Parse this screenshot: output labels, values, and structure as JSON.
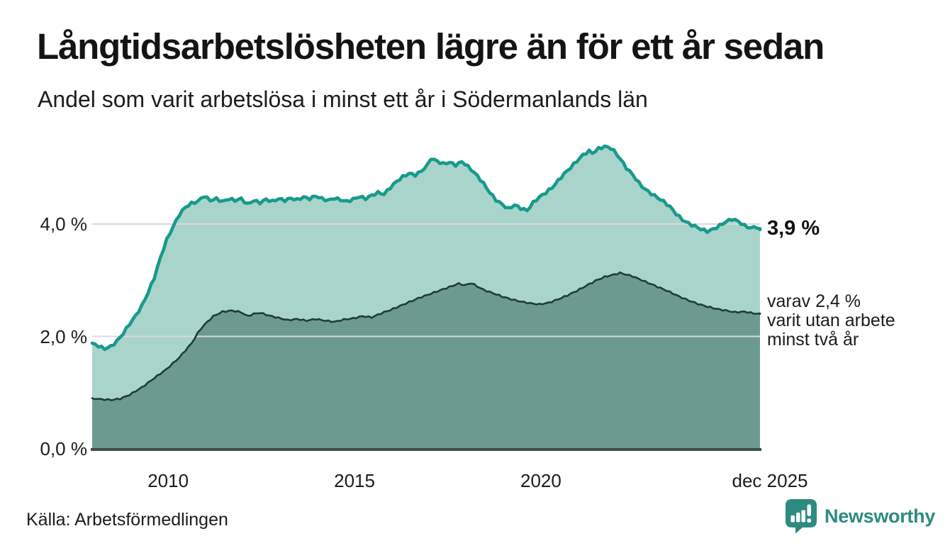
{
  "header": {
    "title": "Långtidsarbetslösheten lägre än för ett år sedan",
    "subtitle": "Andel som varit arbetslösa i minst ett år i Södermanlands län"
  },
  "annotations": {
    "end_total": "3,9 %",
    "end_two_years": "varav 2,4 %\nvarit utan arbete\nminst två år"
  },
  "source": {
    "label": "Källa: Arbetsförmedlingen"
  },
  "branding": {
    "name": "Newsworthy",
    "logo_icon": "bar-chart-speech-bubble-icon",
    "color": "#2e8b80"
  },
  "colors": {
    "total_line": "#189a8b",
    "total_fill": "#a9d4cc",
    "two_years_line": "#1f3c37",
    "two_years_fill": "#6d9a90",
    "baseline": "#3c4e4a",
    "gridline": "#d9d9d9",
    "text": "#1c1c1c"
  },
  "chart_data": {
    "type": "area",
    "title": "Långtidsarbetslösheten lägre än för ett år sedan",
    "subtitle": "Andel som varit arbetslösa i minst ett år i Södermanlands län",
    "unit": "%",
    "x_range": [
      2008.0,
      2025.9167
    ],
    "ylim": [
      0,
      5.5
    ],
    "grid": "horizontal",
    "legend_position": "right-edge-labels",
    "y_axis": {
      "ticks": [
        {
          "label": "4,0 %",
          "value": 4.0
        },
        {
          "label": "2,0 %",
          "value": 2.0
        },
        {
          "label": "0,0 %",
          "value": 0.0
        }
      ]
    },
    "x_axis": {
      "ticks": [
        {
          "label": "2010",
          "year": 2010
        },
        {
          "label": "2015",
          "year": 2015
        },
        {
          "label": "2020",
          "year": 2020
        },
        {
          "label": "dec 2025",
          "year": 2025.9167
        }
      ]
    },
    "series": [
      {
        "name": "Andel arbetslösa minst ett år",
        "end_value": 3.9,
        "end_label": "3,9 %",
        "line_color": "#189a8b",
        "fill_color": "#a9d4cc",
        "points": [
          [
            2008.0,
            1.88
          ],
          [
            2008.17,
            1.83
          ],
          [
            2008.33,
            1.78
          ],
          [
            2008.5,
            1.82
          ],
          [
            2008.67,
            1.92
          ],
          [
            2008.83,
            2.05
          ],
          [
            2009.0,
            2.22
          ],
          [
            2009.17,
            2.37
          ],
          [
            2009.33,
            2.54
          ],
          [
            2009.5,
            2.78
          ],
          [
            2009.67,
            3.05
          ],
          [
            2009.83,
            3.4
          ],
          [
            2010.0,
            3.72
          ],
          [
            2010.17,
            3.95
          ],
          [
            2010.33,
            4.16
          ],
          [
            2010.5,
            4.3
          ],
          [
            2010.67,
            4.37
          ],
          [
            2010.83,
            4.4
          ],
          [
            2011.0,
            4.5
          ],
          [
            2011.17,
            4.42
          ],
          [
            2011.33,
            4.45
          ],
          [
            2011.5,
            4.4
          ],
          [
            2011.67,
            4.45
          ],
          [
            2011.83,
            4.42
          ],
          [
            2012.0,
            4.45
          ],
          [
            2012.17,
            4.35
          ],
          [
            2012.33,
            4.42
          ],
          [
            2012.5,
            4.38
          ],
          [
            2012.67,
            4.44
          ],
          [
            2012.83,
            4.4
          ],
          [
            2013.0,
            4.45
          ],
          [
            2013.17,
            4.42
          ],
          [
            2013.33,
            4.46
          ],
          [
            2013.5,
            4.43
          ],
          [
            2013.67,
            4.48
          ],
          [
            2013.83,
            4.45
          ],
          [
            2014.0,
            4.5
          ],
          [
            2014.17,
            4.45
          ],
          [
            2014.33,
            4.42
          ],
          [
            2014.5,
            4.46
          ],
          [
            2014.67,
            4.43
          ],
          [
            2014.83,
            4.4
          ],
          [
            2015.0,
            4.44
          ],
          [
            2015.17,
            4.49
          ],
          [
            2015.33,
            4.45
          ],
          [
            2015.5,
            4.51
          ],
          [
            2015.67,
            4.56
          ],
          [
            2015.83,
            4.53
          ],
          [
            2016.0,
            4.65
          ],
          [
            2016.17,
            4.76
          ],
          [
            2016.33,
            4.84
          ],
          [
            2016.5,
            4.9
          ],
          [
            2016.67,
            4.87
          ],
          [
            2016.83,
            4.94
          ],
          [
            2017.0,
            5.05
          ],
          [
            2017.08,
            5.17
          ],
          [
            2017.25,
            5.12
          ],
          [
            2017.42,
            5.07
          ],
          [
            2017.58,
            5.1
          ],
          [
            2017.75,
            5.05
          ],
          [
            2017.92,
            5.11
          ],
          [
            2018.0,
            5.07
          ],
          [
            2018.17,
            4.97
          ],
          [
            2018.33,
            4.86
          ],
          [
            2018.5,
            4.72
          ],
          [
            2018.67,
            4.56
          ],
          [
            2018.83,
            4.43
          ],
          [
            2019.0,
            4.35
          ],
          [
            2019.17,
            4.27
          ],
          [
            2019.33,
            4.34
          ],
          [
            2019.5,
            4.28
          ],
          [
            2019.67,
            4.24
          ],
          [
            2019.83,
            4.38
          ],
          [
            2020.0,
            4.48
          ],
          [
            2020.17,
            4.56
          ],
          [
            2020.33,
            4.64
          ],
          [
            2020.5,
            4.77
          ],
          [
            2020.67,
            4.9
          ],
          [
            2020.83,
            5.0
          ],
          [
            2021.0,
            5.12
          ],
          [
            2021.17,
            5.23
          ],
          [
            2021.33,
            5.3
          ],
          [
            2021.42,
            5.26
          ],
          [
            2021.58,
            5.34
          ],
          [
            2021.75,
            5.38
          ],
          [
            2021.92,
            5.35
          ],
          [
            2022.0,
            5.3
          ],
          [
            2022.17,
            5.16
          ],
          [
            2022.33,
            5.0
          ],
          [
            2022.5,
            4.88
          ],
          [
            2022.67,
            4.73
          ],
          [
            2022.83,
            4.62
          ],
          [
            2023.0,
            4.54
          ],
          [
            2023.17,
            4.47
          ],
          [
            2023.33,
            4.4
          ],
          [
            2023.5,
            4.31
          ],
          [
            2023.67,
            4.18
          ],
          [
            2023.83,
            4.08
          ],
          [
            2024.0,
            4.01
          ],
          [
            2024.17,
            3.96
          ],
          [
            2024.33,
            3.91
          ],
          [
            2024.5,
            3.87
          ],
          [
            2024.67,
            3.91
          ],
          [
            2024.83,
            3.97
          ],
          [
            2025.0,
            4.04
          ],
          [
            2025.17,
            4.09
          ],
          [
            2025.33,
            4.05
          ],
          [
            2025.5,
            3.97
          ],
          [
            2025.67,
            3.93
          ],
          [
            2025.83,
            3.95
          ],
          [
            2025.9167,
            3.9
          ]
        ]
      },
      {
        "name": "varav utan arbete minst två år",
        "end_value": 2.4,
        "end_label": "varav 2,4 % varit utan arbete minst två år",
        "line_color": "#1f3c37",
        "fill_color": "#6d9a90",
        "points": [
          [
            2008.0,
            0.9
          ],
          [
            2008.25,
            0.88
          ],
          [
            2008.5,
            0.87
          ],
          [
            2008.75,
            0.89
          ],
          [
            2009.0,
            0.96
          ],
          [
            2009.33,
            1.09
          ],
          [
            2009.67,
            1.26
          ],
          [
            2010.0,
            1.42
          ],
          [
            2010.33,
            1.62
          ],
          [
            2010.67,
            1.88
          ],
          [
            2010.85,
            2.08
          ],
          [
            2011.0,
            2.2
          ],
          [
            2011.25,
            2.36
          ],
          [
            2011.5,
            2.44
          ],
          [
            2011.75,
            2.46
          ],
          [
            2012.0,
            2.43
          ],
          [
            2012.17,
            2.36
          ],
          [
            2012.33,
            2.4
          ],
          [
            2012.5,
            2.42
          ],
          [
            2012.75,
            2.37
          ],
          [
            2013.0,
            2.33
          ],
          [
            2013.25,
            2.29
          ],
          [
            2013.5,
            2.31
          ],
          [
            2013.75,
            2.28
          ],
          [
            2014.0,
            2.31
          ],
          [
            2014.25,
            2.28
          ],
          [
            2014.5,
            2.26
          ],
          [
            2014.75,
            2.3
          ],
          [
            2015.0,
            2.32
          ],
          [
            2015.25,
            2.36
          ],
          [
            2015.5,
            2.34
          ],
          [
            2015.75,
            2.41
          ],
          [
            2016.0,
            2.47
          ],
          [
            2016.25,
            2.54
          ],
          [
            2016.5,
            2.61
          ],
          [
            2016.75,
            2.68
          ],
          [
            2017.0,
            2.74
          ],
          [
            2017.25,
            2.8
          ],
          [
            2017.5,
            2.86
          ],
          [
            2017.67,
            2.9
          ],
          [
            2017.83,
            2.94
          ],
          [
            2018.0,
            2.91
          ],
          [
            2018.17,
            2.95
          ],
          [
            2018.33,
            2.89
          ],
          [
            2018.5,
            2.83
          ],
          [
            2018.75,
            2.77
          ],
          [
            2019.0,
            2.71
          ],
          [
            2019.25,
            2.66
          ],
          [
            2019.5,
            2.62
          ],
          [
            2019.75,
            2.59
          ],
          [
            2020.0,
            2.57
          ],
          [
            2020.25,
            2.6
          ],
          [
            2020.5,
            2.66
          ],
          [
            2020.75,
            2.73
          ],
          [
            2021.0,
            2.81
          ],
          [
            2021.25,
            2.9
          ],
          [
            2021.5,
            2.99
          ],
          [
            2021.75,
            3.06
          ],
          [
            2022.0,
            3.1
          ],
          [
            2022.17,
            3.13
          ],
          [
            2022.33,
            3.1
          ],
          [
            2022.5,
            3.07
          ],
          [
            2022.75,
            3.0
          ],
          [
            2023.0,
            2.93
          ],
          [
            2023.25,
            2.86
          ],
          [
            2023.5,
            2.79
          ],
          [
            2023.75,
            2.71
          ],
          [
            2024.0,
            2.64
          ],
          [
            2024.25,
            2.58
          ],
          [
            2024.5,
            2.53
          ],
          [
            2024.75,
            2.49
          ],
          [
            2025.0,
            2.46
          ],
          [
            2025.25,
            2.43
          ],
          [
            2025.5,
            2.44
          ],
          [
            2025.75,
            2.41
          ],
          [
            2025.9167,
            2.4
          ]
        ]
      }
    ]
  }
}
